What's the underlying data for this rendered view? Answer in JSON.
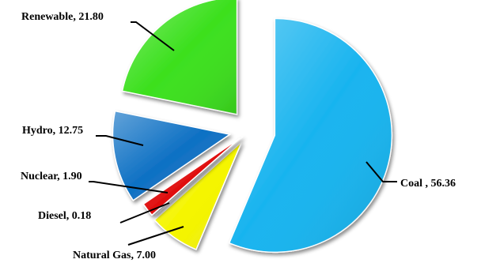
{
  "chart_data": {
    "type": "pie",
    "title": "",
    "categories": [
      "Coal ",
      "Natural Gas",
      "Diesel",
      "Nuclear",
      "Hydro",
      "Renewable"
    ],
    "values": [
      56.36,
      7.0,
      0.18,
      1.9,
      12.75,
      21.8
    ],
    "colors": [
      "#19b4ef",
      "#f5f500",
      "#9aa0a6",
      "#e01010",
      "#0f71c4",
      "#3ce01e"
    ],
    "exploded": true,
    "start_angle_deg": 0,
    "direction": "clockwise",
    "data_labels": [
      "Coal , 56.36",
      "Natural Gas, 7.00",
      "Diesel, 0.18",
      "Nuclear, 1.90",
      "Hydro, 12.75",
      "Renewable, 21.80"
    ],
    "legend": "none"
  }
}
